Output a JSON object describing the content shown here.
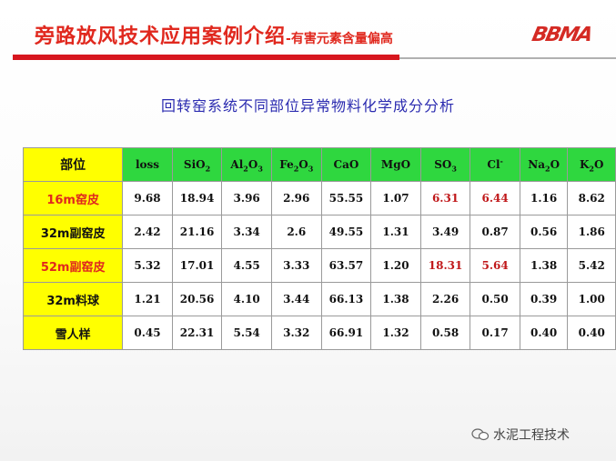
{
  "header": {
    "title": "旁路放风技术应用案例介绍",
    "subtitle": "-有害元素含量偏高",
    "logo": "BBMA"
  },
  "table_title": "回转窑系统不同部位异常物料化学成分分析",
  "table": {
    "corner_label": "部位",
    "columns": [
      "loss",
      "SiO2",
      "Al2O3",
      "Fe2O3",
      "CaO",
      "MgO",
      "SO3",
      "Cl-",
      "Na2O",
      "K2O"
    ],
    "rows": [
      {
        "label": "16m窑皮",
        "values": [
          "9.68",
          "18.94",
          "3.96",
          "2.96",
          "55.55",
          "1.07",
          "6.31",
          "6.44",
          "1.16",
          "8.62"
        ]
      },
      {
        "label": "32m副窑皮",
        "values": [
          "2.42",
          "21.16",
          "3.34",
          "2.6",
          "49.55",
          "1.31",
          "3.49",
          "0.87",
          "0.56",
          "1.86"
        ]
      },
      {
        "label": "52m副窑皮",
        "values": [
          "5.32",
          "17.01",
          "4.55",
          "3.33",
          "63.57",
          "1.20",
          "18.31",
          "5.64",
          "1.38",
          "5.42"
        ]
      },
      {
        "label": "32m料球",
        "values": [
          "1.21",
          "20.56",
          "4.10",
          "3.44",
          "66.13",
          "1.38",
          "2.26",
          "0.50",
          "0.39",
          "1.00"
        ]
      },
      {
        "label": "雪人样",
        "values": [
          "0.45",
          "22.31",
          "5.54",
          "3.32",
          "66.91",
          "1.32",
          "0.58",
          "0.17",
          "0.40",
          "0.40"
        ]
      }
    ]
  },
  "watermark": "水泥工程技术",
  "colors": {
    "title_red": "#e0281e",
    "header_green": "#2fd73f",
    "label_yellow": "#ffff00",
    "subtitle_blue": "#2b2bb0"
  }
}
